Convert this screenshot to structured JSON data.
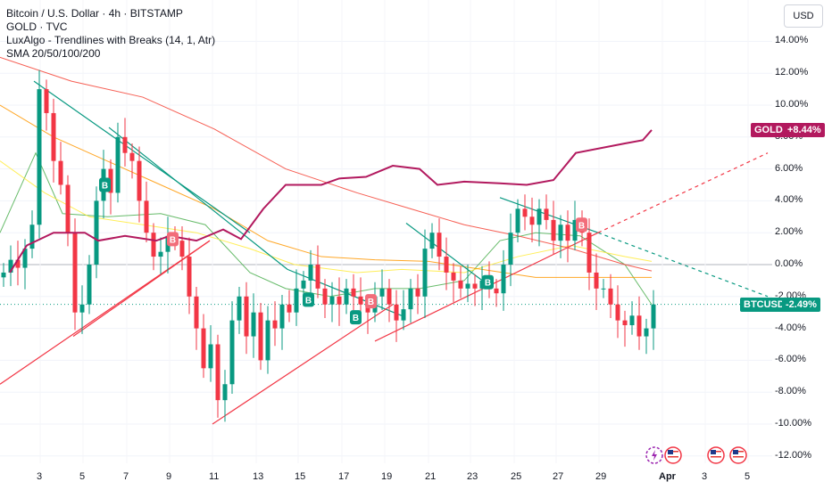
{
  "legend": {
    "main": "Bitcoin / U.S. Dollar · 4h · BITSTAMP",
    "compare": "GOLD · TVC",
    "indicator": "LuxAlgo - Trendlines with Breaks (14, 1, Atr)",
    "sma": "SMA 20/50/100/200"
  },
  "toolbar": {
    "unit_label": "USD"
  },
  "tags": {
    "gold_name": "GOLD",
    "gold_value": "+8.44%",
    "btc_name": "BTCUSD",
    "btc_value": "-2.49%"
  },
  "colors": {
    "up": "#089981",
    "down": "#f23645",
    "gold": "#b2195e",
    "sma20": "#4caf50",
    "sma50": "#ffeb3b",
    "sma100": "#ff9800",
    "sma200": "#f44336",
    "trend_down": "#089981",
    "trend_up": "#f23645"
  },
  "icons": [
    "lightning-event-icon",
    "us-flag-icon",
    "us-flag-icon",
    "us-flag-icon"
  ],
  "chart_data": {
    "type": "candlestick",
    "y_axis": {
      "unit": "%",
      "range": [
        -12.5,
        15
      ],
      "ticks": [
        "14.00%",
        "12.00%",
        "10.00%",
        "8.00%",
        "6.00%",
        "4.00%",
        "2.00%",
        "0.00%",
        "-2.00%",
        "-4.00%",
        "-6.00%",
        "-8.00%",
        "-10.00%",
        "-12.00%"
      ]
    },
    "x_axis": {
      "ticks": [
        "3",
        "5",
        "7",
        "9",
        "11",
        "13",
        "15",
        "17",
        "19",
        "21",
        "23",
        "25",
        "27",
        "29",
        "Apr",
        "3",
        "5"
      ]
    },
    "btc_closes": [
      -0.5,
      0.3,
      -0.2,
      1.0,
      2.5,
      11.0,
      9.5,
      6.5,
      5.0,
      2.0,
      -3.0,
      -2.5,
      0.0,
      4.0,
      6.0,
      4.5,
      8.0,
      7.0,
      6.5,
      4.0,
      2.0,
      0.5,
      0.8,
      1.8,
      1.5,
      0.5,
      -2.0,
      -4.0,
      -6.5,
      -5.0,
      -8.5,
      -7.5,
      -3.5,
      -2.0,
      -4.5,
      -3.0,
      -6.0,
      -3.5,
      -4.0,
      -2.5,
      -3.0,
      -1.5,
      -1.0,
      0.0,
      -1.5,
      -2.5,
      -2.0,
      -2.5,
      -1.5,
      -2.0,
      -2.5,
      -3.0,
      -2.0,
      -1.5,
      -2.5,
      -3.5,
      -2.8,
      -1.5,
      -2.0,
      1.0,
      2.0,
      0.5,
      -0.5,
      -1.0,
      -1.5,
      -1.2,
      -1.5,
      -1.0,
      -1.5,
      -1.8,
      0.0,
      2.0,
      3.5,
      3.0,
      2.5,
      3.5,
      2.8,
      1.5,
      2.5,
      1.5,
      2.8,
      2.0,
      -0.5,
      -1.5,
      -1.5,
      -2.5,
      -3.5,
      -3.8,
      -3.2,
      -4.5,
      -4.0,
      -2.5
    ],
    "gold_pct": [
      [
        11,
        -0.5
      ],
      [
        30,
        1.2
      ],
      [
        60,
        2.0
      ],
      [
        95,
        2.0
      ],
      [
        110,
        1.5
      ],
      [
        140,
        1.8
      ],
      [
        175,
        1.5
      ],
      [
        190,
        1.8
      ],
      [
        220,
        1.5
      ],
      [
        250,
        2.2
      ],
      [
        270,
        1.6
      ],
      [
        295,
        3.5
      ],
      [
        320,
        5.0
      ],
      [
        360,
        5.0
      ],
      [
        380,
        5.4
      ],
      [
        410,
        5.5
      ],
      [
        440,
        6.2
      ],
      [
        470,
        6.0
      ],
      [
        490,
        5.0
      ],
      [
        520,
        5.2
      ],
      [
        560,
        5.1
      ],
      [
        590,
        5.0
      ],
      [
        620,
        5.3
      ],
      [
        645,
        7.0
      ],
      [
        700,
        7.6
      ],
      [
        720,
        7.8
      ],
      [
        730,
        8.44
      ]
    ],
    "sma20": [
      [
        0,
        2.0
      ],
      [
        40,
        7.0
      ],
      [
        70,
        3.2
      ],
      [
        120,
        3.0
      ],
      [
        180,
        3.2
      ],
      [
        230,
        2.5
      ],
      [
        280,
        -0.5
      ],
      [
        320,
        -1.5
      ],
      [
        370,
        -2.0
      ],
      [
        420,
        -1.5
      ],
      [
        470,
        -1.5
      ],
      [
        520,
        -1.0
      ],
      [
        560,
        1.5
      ],
      [
        600,
        2.0
      ],
      [
        650,
        1.8
      ],
      [
        700,
        0.0
      ],
      [
        730,
        -2.5
      ]
    ],
    "sma50": [
      [
        0,
        6.5
      ],
      [
        50,
        4.5
      ],
      [
        100,
        3.0
      ],
      [
        160,
        2.5
      ],
      [
        220,
        2.0
      ],
      [
        280,
        1.0
      ],
      [
        330,
        0.0
      ],
      [
        400,
        -0.5
      ],
      [
        450,
        -0.3
      ],
      [
        520,
        -0.5
      ],
      [
        580,
        0.5
      ],
      [
        640,
        1.2
      ],
      [
        700,
        0.5
      ],
      [
        730,
        0.2
      ]
    ],
    "sma100": [
      [
        0,
        10.0
      ],
      [
        60,
        8.0
      ],
      [
        120,
        6.5
      ],
      [
        180,
        5.0
      ],
      [
        240,
        3.5
      ],
      [
        300,
        1.5
      ],
      [
        360,
        0.5
      ],
      [
        420,
        0.3
      ],
      [
        480,
        0.2
      ],
      [
        540,
        -0.3
      ],
      [
        600,
        -0.8
      ],
      [
        660,
        -0.8
      ],
      [
        730,
        -0.8
      ]
    ],
    "sma200": [
      [
        0,
        13.0
      ],
      [
        80,
        11.5
      ],
      [
        160,
        10.5
      ],
      [
        240,
        8.5
      ],
      [
        320,
        6.0
      ],
      [
        400,
        4.5
      ],
      [
        460,
        3.5
      ],
      [
        520,
        2.5
      ],
      [
        580,
        1.8
      ],
      [
        640,
        1.0
      ],
      [
        700,
        0.0
      ],
      [
        730,
        -0.4
      ]
    ],
    "trendlines": [
      {
        "kind": "down",
        "pts": [
          [
            38,
            11.5
          ],
          [
            280,
            2.0
          ]
        ]
      },
      {
        "kind": "down",
        "pts": [
          [
            122,
            8.6
          ],
          [
            322,
            -0.3
          ]
        ]
      },
      {
        "kind": "down",
        "pts": [
          [
            322,
            -0.3
          ],
          [
            450,
            -3.2
          ]
        ]
      },
      {
        "kind": "down",
        "pts": [
          [
            455,
            2.6
          ],
          [
            545,
            -1.2
          ]
        ]
      },
      {
        "kind": "down",
        "pts": [
          [
            560,
            4.2
          ],
          [
            670,
            2.0
          ]
        ]
      },
      {
        "kind": "down",
        "dashed": true,
        "pts": [
          [
            670,
            2.0
          ],
          [
            860,
            -2.0
          ]
        ]
      },
      {
        "kind": "up",
        "pts": [
          [
            0,
            -7.5
          ],
          [
            235,
            1.5
          ]
        ]
      },
      {
        "kind": "up",
        "pts": [
          [
            82,
            -4.5
          ],
          [
            235,
            1.5
          ]
        ]
      },
      {
        "kind": "up",
        "pts": [
          [
            238,
            -10.0
          ],
          [
            440,
            -2.5
          ]
        ]
      },
      {
        "kind": "up",
        "pts": [
          [
            420,
            -4.8
          ],
          [
            670,
            2.0
          ]
        ]
      },
      {
        "kind": "up",
        "dashed": true,
        "pts": [
          [
            670,
            2.0
          ],
          [
            860,
            7.0
          ]
        ]
      }
    ],
    "break_markers": [
      {
        "label": "B",
        "kind": "bull",
        "x": 117,
        "y": 5.0
      },
      {
        "label": "B",
        "kind": "bull",
        "x": 345,
        "y": -2.2
      },
      {
        "label": "B",
        "kind": "bull",
        "x": 398,
        "y": -3.3
      },
      {
        "label": "B",
        "kind": "bull",
        "x": 546,
        "y": -1.1
      },
      {
        "label": "B",
        "kind": "bear",
        "x": 193,
        "y": 1.6
      },
      {
        "label": "B",
        "kind": "bear",
        "x": 415,
        "y": -2.3
      },
      {
        "label": "B",
        "kind": "bear",
        "x": 651,
        "y": 2.5
      }
    ]
  }
}
